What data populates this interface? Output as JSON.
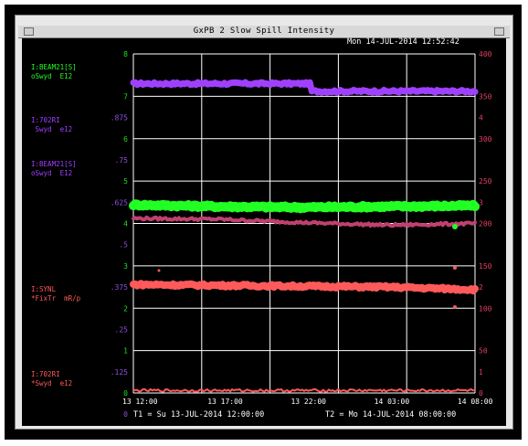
{
  "window": {
    "title": "GxPB 2 Slow Spill Intensity",
    "timestamp": "Mon 14-JUL-2014 12:52:42"
  },
  "colors": {
    "green": "#22ff22",
    "purple": "#a040ff",
    "maroon": "#c04070",
    "red": "#ff5a5a",
    "axis_green": "#22dd22",
    "axis_purple": "#9050e0",
    "axis_red": "#e04060",
    "grid": "#ffffff"
  },
  "legend": [
    {
      "line1": "I:BEAM21[S]",
      "line2": "oSwyd  E12",
      "color": "#22ff22"
    },
    {
      "line1": "I:702RI",
      "line2": " Swyd  e12",
      "color": "#a040ff"
    },
    {
      "line1": "I:BEAM21[S]",
      "line2": "oSwyd  E12",
      "color": "#a040ff"
    },
    {
      "line1": "I:SYNL",
      "line2": "*FixTr  mR/p",
      "color": "#ff5a5a"
    },
    {
      "line1": "I:702RI",
      "line2": "*Swyd  e12",
      "color": "#ff5a5a"
    }
  ],
  "axes": {
    "left_green": [
      "8",
      "7",
      "6",
      "5",
      "4",
      "3",
      "2",
      "1",
      "0"
    ],
    "left_purple": [
      ".875",
      ".75",
      ".625",
      ".5",
      ".375",
      ".25",
      ".125",
      "0"
    ],
    "right_red_major": [
      "400",
      "350",
      "300",
      "250",
      "200",
      "150",
      "100",
      "50",
      "0"
    ],
    "right_red_minor": [
      "4",
      "3",
      "2",
      "1",
      "0"
    ]
  },
  "x_axis": {
    "ticks": [
      "13 12:00",
      "13 17:00",
      "13 22:00",
      "14 03:00",
      "14 08:00"
    ],
    "t1": "T1 = Su 13-JUL-2014 12:00:00",
    "t2": "T2 = Mo 14-JUL-2014 08:00:00"
  },
  "chart_data": {
    "type": "line",
    "x": [
      "13 12:00",
      "13 17:00",
      "13 22:00",
      "14 03:00",
      "14 08:00"
    ],
    "series": [
      {
        "name": "I:BEAM21[S]",
        "color": "#a040ff",
        "level_right_axis": [
          365,
          365,
          357,
          356,
          356
        ]
      },
      {
        "name": "I:BEAM21[S]",
        "color": "#22ff22",
        "level_right_axis": [
          222,
          220,
          219,
          220,
          221
        ]
      },
      {
        "name": "I:702RI",
        "color": "#c04070",
        "level_right_axis": [
          206,
          205,
          201,
          198,
          200
        ]
      },
      {
        "name": "I:SYNL",
        "color": "#ff5a5a",
        "level_right_axis": [
          128,
          127,
          126,
          125,
          122
        ]
      },
      {
        "name": "I:702RI",
        "color": "#ff5a5a",
        "level_right_axis": [
          3,
          3,
          3,
          3,
          3
        ]
      }
    ],
    "right_ylim": [
      0,
      400
    ],
    "left_ylim": [
      0,
      8
    ],
    "grid": true
  }
}
